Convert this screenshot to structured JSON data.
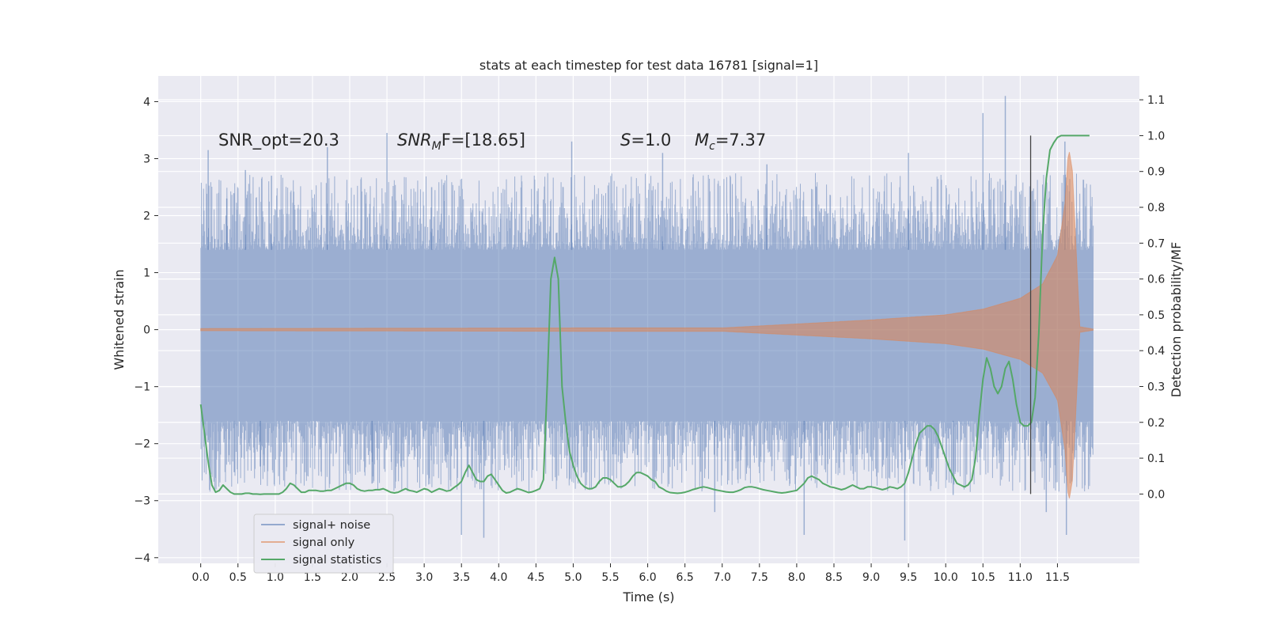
{
  "chart_data": {
    "type": "line",
    "title": "stats at each timestep for test data 16781 [signal=1]",
    "xlabel": "Time (s)",
    "ylabel_left": "Whitened strain",
    "ylabel_right": "Detection probability/MF",
    "xlim": [
      -0.57,
      12.6
    ],
    "ylim_left": [
      -4.1,
      4.45
    ],
    "ylim_right": [
      -0.1935,
      1.1665
    ],
    "x_ticks": [
      "0.0",
      "0.5",
      "1.0",
      "1.5",
      "2.0",
      "2.5",
      "3.0",
      "3.5",
      "4.0",
      "4.5",
      "5.0",
      "5.5",
      "6.0",
      "6.5",
      "7.0",
      "7.5",
      "8.0",
      "8.5",
      "9.0",
      "9.5",
      "10.0",
      "10.5",
      "11.0",
      "11.5"
    ],
    "y_left_ticks": [
      "−4",
      "−3",
      "−2",
      "−1",
      "0",
      "1",
      "2",
      "3",
      "4"
    ],
    "y_right_ticks": [
      "0.0",
      "0.1",
      "0.2",
      "0.3",
      "0.4",
      "0.5",
      "0.6",
      "0.7",
      "0.8",
      "0.9",
      "1.0",
      "1.1"
    ],
    "grid": true,
    "legend_position": "lower-left",
    "annotations": {
      "snr_opt": "SNR_opt=20.3",
      "snr_mf_main": "SNR",
      "snr_mf_sub": "M",
      "snr_mf_tail": "F=[18.65]",
      "s_main": "S",
      "s_tail": "=1.0",
      "mc_main": "M",
      "mc_sub": "c",
      "mc_tail": "=7.37"
    },
    "vline": {
      "x": 11.14,
      "y_range_right": [
        0.0,
        1.0
      ]
    },
    "series": [
      {
        "name": "signal+ noise",
        "color": "#4c72b0",
        "axis": "left",
        "x_range": [
          0.0,
          11.98
        ],
        "band_low_typical": -1.6,
        "band_high_typical": 1.4,
        "peak_values": [
          [
            0.1,
            3.15
          ],
          [
            0.35,
            2.3
          ],
          [
            0.6,
            2.8
          ],
          [
            0.95,
            2.7
          ],
          [
            1.7,
            3.2
          ],
          [
            2.5,
            3.45
          ],
          [
            3.1,
            2.5
          ],
          [
            4.98,
            3.3
          ],
          [
            6.2,
            3.1
          ],
          [
            7.6,
            2.9
          ],
          [
            9.5,
            3.1
          ],
          [
            10.5,
            3.8
          ],
          [
            10.8,
            4.1
          ],
          [
            11.6,
            3.3
          ]
        ],
        "trough_values": [
          [
            0.45,
            -2.5
          ],
          [
            0.8,
            -2.4
          ],
          [
            2.3,
            -2.7
          ],
          [
            3.5,
            -3.6
          ],
          [
            3.8,
            -3.65
          ],
          [
            6.9,
            -3.2
          ],
          [
            8.1,
            -3.6
          ],
          [
            9.45,
            -3.7
          ],
          [
            10.1,
            -2.9
          ],
          [
            11.35,
            -3.2
          ],
          [
            11.62,
            -3.6
          ]
        ]
      },
      {
        "name": "signal only",
        "color": "#dd8452",
        "axis": "left",
        "x_range": [
          0.0,
          11.98
        ],
        "envelope_amplitude": [
          [
            0.0,
            0.02
          ],
          [
            5.0,
            0.03
          ],
          [
            7.0,
            0.03
          ],
          [
            8.0,
            0.1
          ],
          [
            9.0,
            0.17
          ],
          [
            10.0,
            0.26
          ],
          [
            10.5,
            0.36
          ],
          [
            11.0,
            0.55
          ],
          [
            11.3,
            0.8
          ],
          [
            11.5,
            1.3
          ],
          [
            11.6,
            2.2
          ],
          [
            11.65,
            3.2
          ],
          [
            11.7,
            2.8
          ],
          [
            11.8,
            0.05
          ],
          [
            11.98,
            0.01
          ]
        ]
      },
      {
        "name": "signal statistics",
        "color": "#55a868",
        "axis": "right",
        "x": [
          0.0,
          0.05,
          0.1,
          0.15,
          0.2,
          0.25,
          0.3,
          0.35,
          0.4,
          0.45,
          0.5,
          0.55,
          0.6,
          0.65,
          0.7,
          0.75,
          0.8,
          0.85,
          0.9,
          0.95,
          1.0,
          1.05,
          1.1,
          1.15,
          1.2,
          1.25,
          1.3,
          1.35,
          1.4,
          1.45,
          1.5,
          1.55,
          1.6,
          1.65,
          1.7,
          1.75,
          1.8,
          1.85,
          1.9,
          1.95,
          2.0,
          2.05,
          2.1,
          2.15,
          2.2,
          2.25,
          2.3,
          2.35,
          2.4,
          2.45,
          2.5,
          2.55,
          2.6,
          2.65,
          2.7,
          2.75,
          2.8,
          2.85,
          2.9,
          2.95,
          3.0,
          3.05,
          3.1,
          3.15,
          3.2,
          3.25,
          3.3,
          3.35,
          3.4,
          3.45,
          3.5,
          3.55,
          3.6,
          3.65,
          3.7,
          3.75,
          3.8,
          3.85,
          3.9,
          3.95,
          4.0,
          4.05,
          4.1,
          4.15,
          4.2,
          4.25,
          4.3,
          4.35,
          4.4,
          4.45,
          4.5,
          4.55,
          4.6,
          4.65,
          4.7,
          4.75,
          4.8,
          4.85,
          4.9,
          4.95,
          5.0,
          5.05,
          5.1,
          5.15,
          5.2,
          5.25,
          5.3,
          5.35,
          5.4,
          5.45,
          5.5,
          5.55,
          5.6,
          5.65,
          5.7,
          5.75,
          5.8,
          5.85,
          5.9,
          5.95,
          6.0,
          6.05,
          6.1,
          6.15,
          6.2,
          6.25,
          6.3,
          6.35,
          6.4,
          6.45,
          6.5,
          6.55,
          6.6,
          6.65,
          6.7,
          6.75,
          6.8,
          6.85,
          6.9,
          6.95,
          7.0,
          7.05,
          7.1,
          7.15,
          7.2,
          7.25,
          7.3,
          7.35,
          7.4,
          7.45,
          7.5,
          7.55,
          7.6,
          7.65,
          7.7,
          7.75,
          7.8,
          7.85,
          7.9,
          7.95,
          8.0,
          8.05,
          8.1,
          8.15,
          8.2,
          8.25,
          8.3,
          8.35,
          8.4,
          8.45,
          8.5,
          8.55,
          8.6,
          8.65,
          8.7,
          8.75,
          8.8,
          8.85,
          8.9,
          8.95,
          9.0,
          9.05,
          9.1,
          9.15,
          9.2,
          9.25,
          9.3,
          9.35,
          9.4,
          9.45,
          9.5,
          9.55,
          9.6,
          9.65,
          9.7,
          9.75,
          9.8,
          9.85,
          9.9,
          9.95,
          10.0,
          10.05,
          10.1,
          10.15,
          10.2,
          10.25,
          10.3,
          10.35,
          10.4,
          10.45,
          10.5,
          10.55,
          10.6,
          10.65,
          10.7,
          10.75,
          10.8,
          10.85,
          10.9,
          10.95,
          11.0,
          11.05,
          11.1,
          11.15,
          11.2,
          11.25,
          11.3,
          11.35,
          11.4,
          11.45,
          11.5,
          11.55,
          11.6,
          11.65,
          11.7,
          11.75,
          11.8,
          11.85,
          11.9,
          11.93
        ],
        "values": [
          0.25,
          0.17,
          0.09,
          0.025,
          0.005,
          0.01,
          0.025,
          0.015,
          0.005,
          0.0,
          0.0,
          0.0,
          0.002,
          0.002,
          0.0,
          0.0,
          -0.001,
          0.0,
          0.0,
          0.0,
          0.0,
          0.0,
          0.005,
          0.015,
          0.03,
          0.025,
          0.015,
          0.005,
          0.005,
          0.01,
          0.01,
          0.01,
          0.008,
          0.008,
          0.01,
          0.01,
          0.015,
          0.02,
          0.025,
          0.03,
          0.03,
          0.025,
          0.015,
          0.01,
          0.008,
          0.01,
          0.01,
          0.012,
          0.012,
          0.015,
          0.01,
          0.005,
          0.003,
          0.005,
          0.01,
          0.015,
          0.01,
          0.008,
          0.005,
          0.01,
          0.015,
          0.012,
          0.005,
          0.01,
          0.015,
          0.012,
          0.008,
          0.01,
          0.018,
          0.025,
          0.035,
          0.06,
          0.08,
          0.06,
          0.04,
          0.035,
          0.035,
          0.05,
          0.055,
          0.04,
          0.025,
          0.01,
          0.003,
          0.005,
          0.01,
          0.015,
          0.012,
          0.008,
          0.004,
          0.006,
          0.01,
          0.015,
          0.04,
          0.3,
          0.6,
          0.66,
          0.6,
          0.3,
          0.2,
          0.12,
          0.08,
          0.05,
          0.03,
          0.02,
          0.015,
          0.015,
          0.02,
          0.035,
          0.045,
          0.045,
          0.04,
          0.03,
          0.02,
          0.02,
          0.025,
          0.035,
          0.05,
          0.06,
          0.06,
          0.055,
          0.05,
          0.04,
          0.035,
          0.02,
          0.015,
          0.008,
          0.004,
          0.003,
          0.002,
          0.003,
          0.005,
          0.008,
          0.012,
          0.015,
          0.018,
          0.02,
          0.018,
          0.015,
          0.012,
          0.01,
          0.008,
          0.006,
          0.005,
          0.005,
          0.008,
          0.012,
          0.018,
          0.02,
          0.02,
          0.018,
          0.015,
          0.012,
          0.01,
          0.008,
          0.006,
          0.004,
          0.003,
          0.004,
          0.006,
          0.008,
          0.01,
          0.02,
          0.03,
          0.045,
          0.05,
          0.045,
          0.04,
          0.03,
          0.025,
          0.02,
          0.018,
          0.015,
          0.012,
          0.015,
          0.02,
          0.025,
          0.02,
          0.015,
          0.015,
          0.02,
          0.02,
          0.018,
          0.015,
          0.012,
          0.015,
          0.02,
          0.018,
          0.015,
          0.02,
          0.03,
          0.06,
          0.1,
          0.14,
          0.17,
          0.18,
          0.19,
          0.19,
          0.18,
          0.16,
          0.13,
          0.1,
          0.07,
          0.05,
          0.03,
          0.025,
          0.02,
          0.025,
          0.04,
          0.1,
          0.22,
          0.32,
          0.38,
          0.35,
          0.3,
          0.28,
          0.3,
          0.35,
          0.37,
          0.32,
          0.25,
          0.2,
          0.19,
          0.19,
          0.2,
          0.27,
          0.45,
          0.72,
          0.88,
          0.96,
          0.98,
          0.995,
          1.0,
          1.0,
          1.0,
          1.0,
          1.0,
          1.0,
          1.0,
          1.0,
          1.0
        ]
      }
    ]
  }
}
